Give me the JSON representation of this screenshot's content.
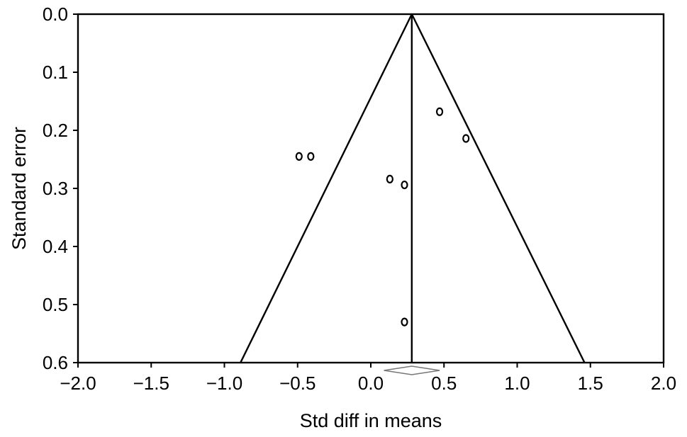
{
  "chart_data": {
    "type": "scatter",
    "subtype": "funnel-plot",
    "title": "",
    "xlabel": "Std diff in means",
    "ylabel": "Standard error",
    "xlim": [
      -2.0,
      2.0
    ],
    "ylim": [
      0.0,
      0.6
    ],
    "y_inverted": true,
    "x_ticks": [
      "-2.0",
      "-1.5",
      "-1.0",
      "-0.5",
      "0.0",
      "0.5",
      "1.0",
      "1.5",
      "2.0"
    ],
    "y_ticks": [
      "0.0",
      "0.1",
      "0.2",
      "0.3",
      "0.4",
      "0.5",
      "0.6"
    ],
    "grid": false,
    "pooled_estimate": 0.28,
    "funnel_95ci_at_se_0_6": [
      -0.89,
      1.46
    ],
    "diamond": {
      "center": 0.28,
      "lower": 0.09,
      "upper": 0.47
    },
    "points": [
      {
        "x": -0.49,
        "y": 0.245
      },
      {
        "x": -0.41,
        "y": 0.245
      },
      {
        "x": 0.13,
        "y": 0.284
      },
      {
        "x": 0.23,
        "y": 0.294
      },
      {
        "x": 0.47,
        "y": 0.168
      },
      {
        "x": 0.65,
        "y": 0.214
      },
      {
        "x": 0.23,
        "y": 0.53
      }
    ],
    "colors": {
      "line": "#000000",
      "marker": "#000000",
      "background": "#ffffff"
    }
  }
}
